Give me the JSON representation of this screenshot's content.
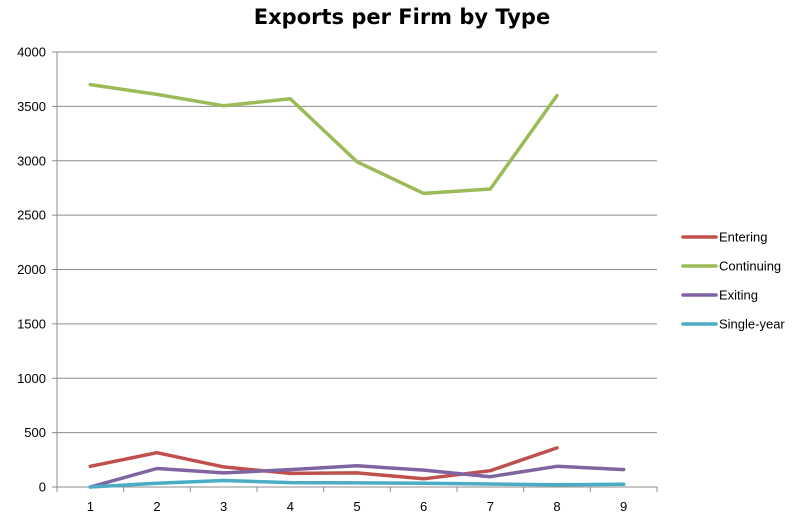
{
  "chart_data": {
    "type": "line",
    "title": "Exports per Firm by Type",
    "xlabel": "",
    "ylabel": "",
    "x": [
      1,
      2,
      3,
      4,
      5,
      6,
      7,
      8,
      9
    ],
    "ylim": [
      0,
      4000
    ],
    "yticks": [
      0,
      500,
      1000,
      1500,
      2000,
      2500,
      3000,
      3500,
      4000
    ],
    "grid": true,
    "legend_position": "right",
    "series": [
      {
        "name": "Entering",
        "color": "#c0504d",
        "values": [
          190,
          315,
          185,
          125,
          130,
          75,
          150,
          360,
          null
        ]
      },
      {
        "name": "Continuing",
        "color": "#9bbb59",
        "values": [
          3700,
          3610,
          3505,
          3570,
          2990,
          2700,
          2740,
          3600,
          null
        ]
      },
      {
        "name": "Exiting",
        "color": "#8064a2",
        "values": [
          0,
          170,
          130,
          160,
          195,
          155,
          95,
          190,
          160
        ]
      },
      {
        "name": "Single-year",
        "color": "#4bacc6",
        "values": [
          0,
          35,
          60,
          40,
          38,
          35,
          28,
          20,
          25
        ]
      }
    ]
  }
}
